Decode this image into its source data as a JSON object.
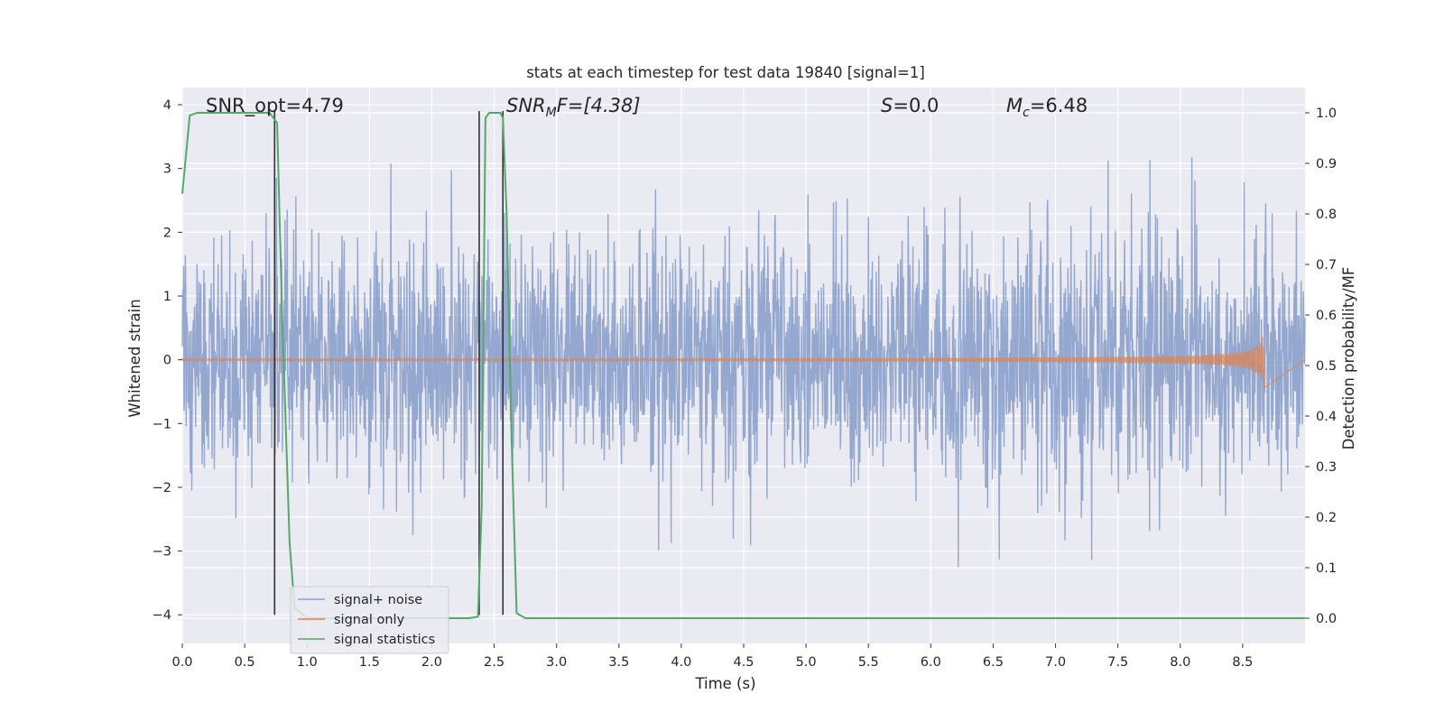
{
  "chart_data": {
    "type": "line",
    "title": "stats at each timestep for test data 19840 [signal=1]",
    "xlabel": "Time (s)",
    "ylabel": "Whitened strain",
    "y2label": "Detection probability/MF",
    "xlim": [
      0.0,
      9.0
    ],
    "ylim": [
      -4.45,
      4.27
    ],
    "y2lim": [
      -0.05,
      1.05
    ],
    "grid": true,
    "legend_position": "lower-left",
    "x_ticks": [
      "0.0",
      "0.5",
      "1.0",
      "1.5",
      "2.0",
      "2.5",
      "3.0",
      "3.5",
      "4.0",
      "4.5",
      "5.0",
      "5.5",
      "6.0",
      "6.5",
      "7.0",
      "7.5",
      "8.0",
      "8.5"
    ],
    "y_ticks": [
      "−4",
      "−3",
      "−2",
      "−1",
      "0",
      "1",
      "2",
      "3",
      "4"
    ],
    "y2_ticks": [
      "0.0",
      "0.1",
      "0.2",
      "0.3",
      "0.4",
      "0.5",
      "0.6",
      "0.7",
      "0.8",
      "0.9",
      "1.0"
    ],
    "annotations": {
      "snr_opt": "SNR_opt=4.79",
      "snr_mf_main": "SNR",
      "snr_mf_sub": "M",
      "snr_mf_rest": "F=[4.38]",
      "s_main": "S",
      "s_rest": "=0.0",
      "mc_main": "M",
      "mc_sub": "c",
      "mc_rest": "=6.48"
    },
    "series": [
      {
        "name": "signal+ noise",
        "color": "#8fa3cc",
        "description_range": [
          -3.8,
          3.9
        ],
        "noise_sigma": 1.0
      },
      {
        "name": "signal only",
        "color": "#dd8452",
        "chirp_start": 4.2,
        "chirp_end": 8.67,
        "peak_amplitude": 0.55
      },
      {
        "name": "signal statistics",
        "color": "#55a868",
        "axis": "right",
        "x": [
          0.0,
          0.06,
          0.12,
          0.2,
          0.3,
          0.4,
          0.5,
          0.6,
          0.66,
          0.7,
          0.73,
          0.76,
          0.8,
          0.86,
          0.9,
          0.95,
          1.0,
          1.5,
          2.0,
          2.3,
          2.37,
          2.4,
          2.43,
          2.46,
          2.5,
          2.55,
          2.57,
          2.6,
          2.64,
          2.68,
          2.75,
          3.0,
          9.0
        ],
        "y": [
          0.84,
          0.995,
          1.0,
          1.0,
          1.0,
          1.0,
          1.0,
          1.0,
          1.0,
          1.0,
          0.99,
          0.98,
          0.6,
          0.15,
          0.02,
          0.01,
          0.0,
          0.0,
          0.0,
          0.0,
          0.003,
          0.22,
          0.99,
          1.0,
          1.0,
          1.0,
          0.99,
          0.8,
          0.35,
          0.01,
          0.0,
          0.0,
          0.0
        ]
      }
    ],
    "vlines": [
      {
        "x": 0.74,
        "y_from": -4.0,
        "y_to": 3.9,
        "color": "#333333"
      },
      {
        "x": 2.38,
        "y_from": -4.0,
        "y_to": 3.9,
        "color": "#333333"
      },
      {
        "x": 2.57,
        "y_from": -4.0,
        "y_to": 3.9,
        "color": "#333333"
      }
    ]
  }
}
